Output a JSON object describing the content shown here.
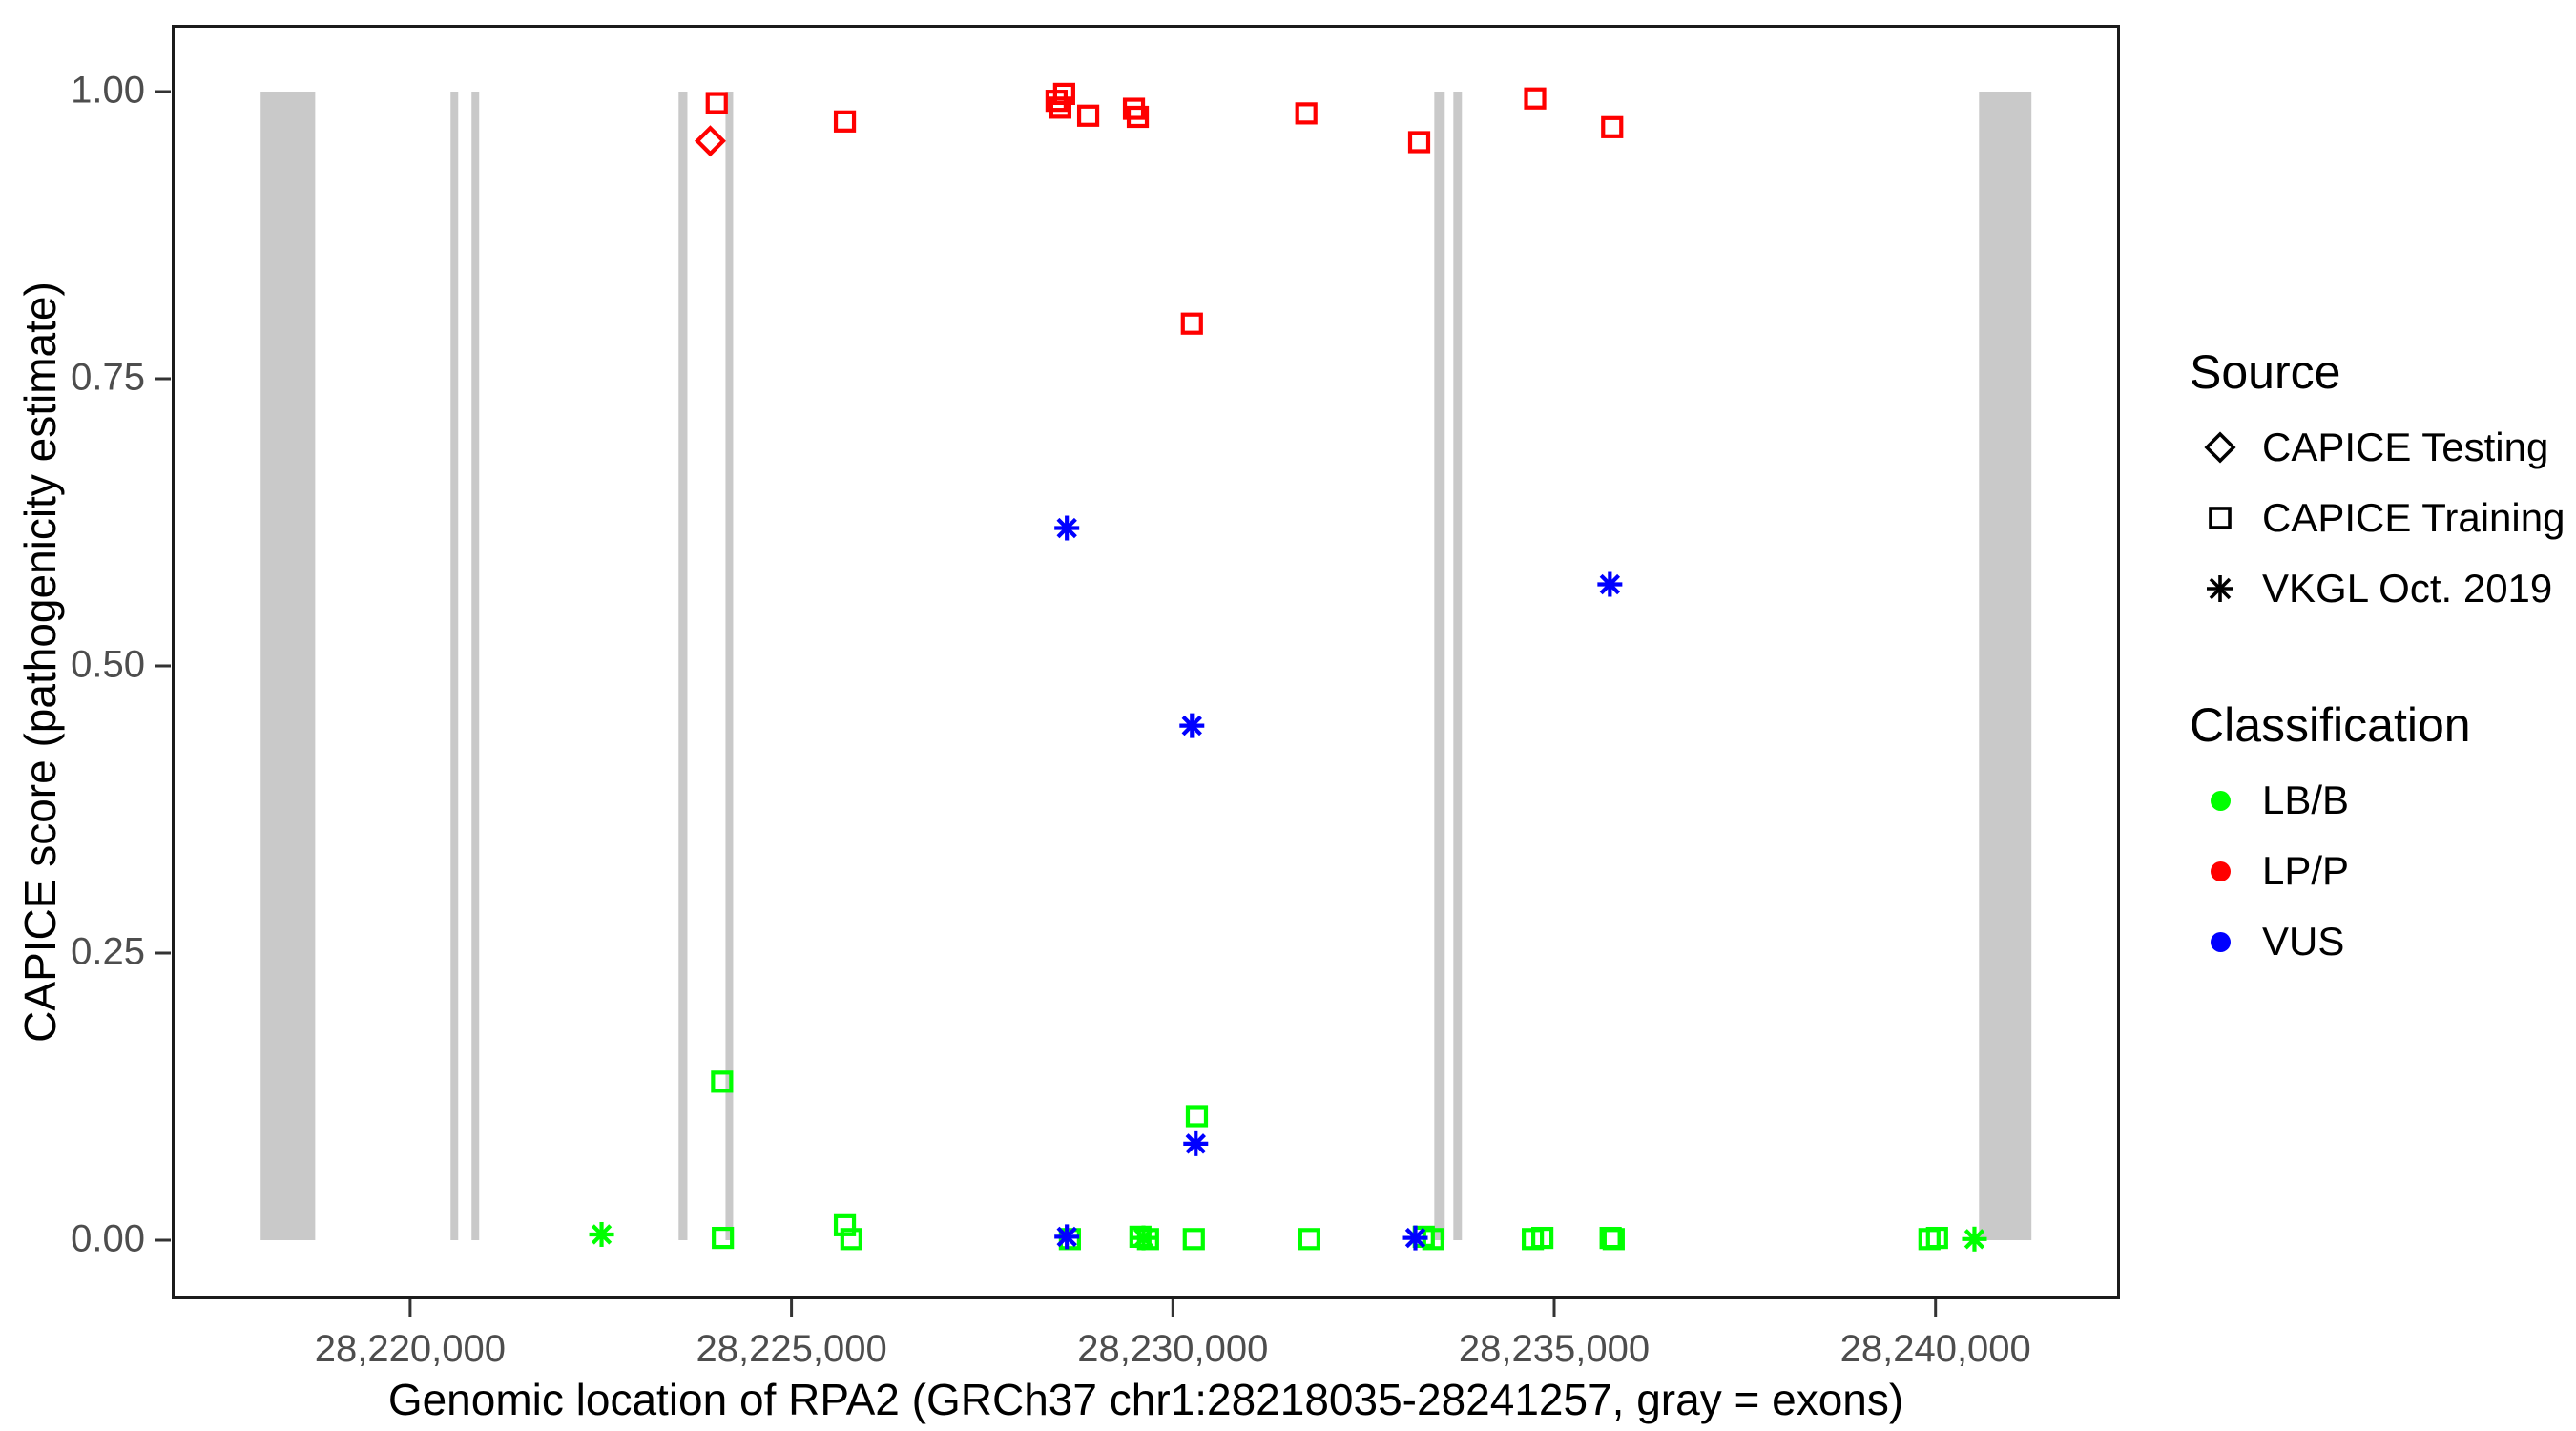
{
  "chart_data": {
    "type": "scatter",
    "title": "",
    "xlabel": "Genomic location of RPA2 (GRCh37 chr1:28218035-28241257, gray = exons)",
    "ylabel": "CAPICE score (pathogenicity estimate)",
    "xlim": [
      28216874,
      28242418
    ],
    "ylim": [
      0,
      1
    ],
    "gene_range": [
      28218035,
      28241257
    ],
    "grid": false,
    "legend_position": "right",
    "exon_color": "#C9C9C9",
    "x_ticks": [
      {
        "v": 28220000,
        "label": "28,220,000"
      },
      {
        "v": 28225000,
        "label": "28,225,000"
      },
      {
        "v": 28230000,
        "label": "28,230,000"
      },
      {
        "v": 28235000,
        "label": "28,235,000"
      },
      {
        "v": 28240000,
        "label": "28,240,000"
      }
    ],
    "y_ticks": [
      {
        "v": 0.0,
        "label": "0.00"
      },
      {
        "v": 0.25,
        "label": "0.25"
      },
      {
        "v": 0.5,
        "label": "0.50"
      },
      {
        "v": 0.75,
        "label": "0.75"
      },
      {
        "v": 1.0,
        "label": "1.00"
      }
    ],
    "exons": [
      [
        28218040,
        28218755
      ],
      [
        28220530,
        28220630
      ],
      [
        28220805,
        28220905
      ],
      [
        28223520,
        28223635
      ],
      [
        28224135,
        28224235
      ],
      [
        28233428,
        28233565
      ],
      [
        28233678,
        28233790
      ],
      [
        28240570,
        28241257
      ]
    ],
    "series": [
      {
        "source": "CAPICE Training",
        "classification": "LB/B",
        "marker": "square",
        "color": "#00FF00",
        "points": [
          [
            28224090,
            0.138
          ],
          [
            28224100,
            0.002
          ],
          [
            28225700,
            0.013
          ],
          [
            28225785,
            0.001
          ],
          [
            28228650,
            0.001
          ],
          [
            28229575,
            0.003
          ],
          [
            28229675,
            0.001
          ],
          [
            28230275,
            0.001
          ],
          [
            28230315,
            0.108
          ],
          [
            28231790,
            0.001
          ],
          [
            28233290,
            0.003
          ],
          [
            28233415,
            0.001
          ],
          [
            28234720,
            0.001
          ],
          [
            28234845,
            0.002
          ],
          [
            28235740,
            0.002
          ],
          [
            28235780,
            0.001
          ],
          [
            28239920,
            0.001
          ],
          [
            28240020,
            0.002
          ]
        ]
      },
      {
        "source": "CAPICE Training",
        "classification": "LP/P",
        "marker": "square",
        "color": "#FF0000",
        "points": [
          [
            28224020,
            0.99
          ],
          [
            28225700,
            0.974
          ],
          [
            28228475,
            0.992
          ],
          [
            28228525,
            0.986
          ],
          [
            28228575,
            0.998
          ],
          [
            28228890,
            0.979
          ],
          [
            28229490,
            0.985
          ],
          [
            28229540,
            0.978
          ],
          [
            28230250,
            0.798
          ],
          [
            28231750,
            0.981
          ],
          [
            28233230,
            0.956
          ],
          [
            28234750,
            0.994
          ],
          [
            28235760,
            0.969
          ]
        ]
      },
      {
        "source": "CAPICE Testing",
        "classification": "LP/P",
        "marker": "diamond",
        "color": "#FF0000",
        "points": [
          [
            28223935,
            0.957
          ]
        ]
      },
      {
        "source": "VKGL Oct. 2019",
        "classification": "LB/B",
        "marker": "asterisk",
        "color": "#00FF00",
        "points": [
          [
            28222510,
            0.005
          ],
          [
            28229615,
            0.002
          ],
          [
            28240510,
            0.001
          ]
        ]
      },
      {
        "source": "VKGL Oct. 2019",
        "classification": "VUS",
        "marker": "asterisk",
        "color": "#0000FF",
        "points": [
          [
            28228610,
            0.62
          ],
          [
            28228610,
            0.003
          ],
          [
            28230250,
            0.448
          ],
          [
            28230300,
            0.084
          ],
          [
            28233180,
            0.002
          ],
          [
            28235730,
            0.571
          ]
        ]
      }
    ]
  },
  "legend": {
    "source": {
      "title": "Source",
      "items": [
        {
          "label": "CAPICE Testing",
          "marker": "diamond"
        },
        {
          "label": "CAPICE Training",
          "marker": "square"
        },
        {
          "label": "VKGL Oct. 2019",
          "marker": "asterisk"
        }
      ]
    },
    "classification": {
      "title": "Classification",
      "items": [
        {
          "label": "LB/B",
          "color": "#00FF00"
        },
        {
          "label": "LP/P",
          "color": "#FF0000"
        },
        {
          "label": "VUS",
          "color": "#0000FF"
        }
      ]
    }
  }
}
